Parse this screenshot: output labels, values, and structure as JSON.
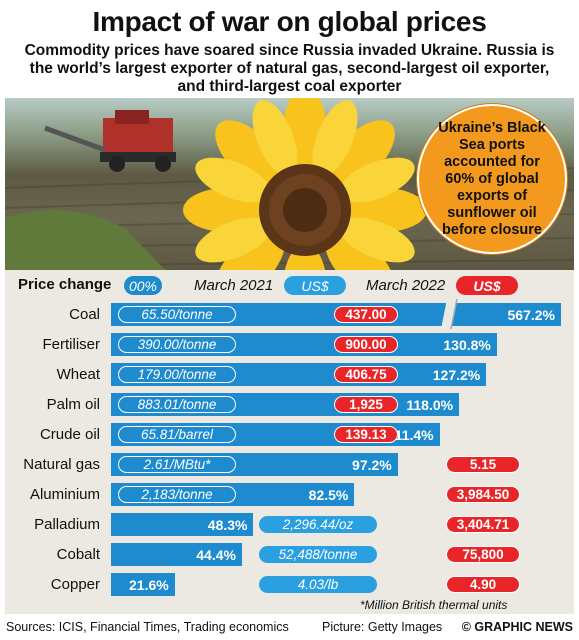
{
  "title": "Impact of war on global prices",
  "subtitle": "Commodity prices have soared since Russia invaded Ukraine. Russia is the world’s largest exporter of natural gas, second-largest oil exporter, and third-largest coal exporter",
  "callout": "Ukraine’s Black Sea ports accounted for 60% of global exports of sunflower oil before closure",
  "header": {
    "price_change_label": "Price change",
    "pct_pill": "00%",
    "march2021_label": "March 2021",
    "march2021_pill": "US$",
    "march2022_label": "March 2022",
    "march2022_pill": "US$"
  },
  "colors": {
    "bar": "#1d8bce",
    "red": "#e8262a",
    "panel": "#ebe9e2",
    "orange": "#f39a1e"
  },
  "chart_data": {
    "type": "bar",
    "orientation": "horizontal",
    "title": "Impact of war on global prices",
    "value_label": "Price change",
    "categories": [
      "Coal",
      "Fertiliser",
      "Wheat",
      "Palm oil",
      "Crude oil",
      "Natural gas",
      "Aluminium",
      "Palladium",
      "Cobalt",
      "Copper"
    ],
    "values": [
      567.2,
      130.8,
      127.2,
      118.0,
      111.4,
      97.2,
      82.5,
      48.3,
      44.4,
      21.6
    ],
    "value_labels": [
      "567.2%",
      "130.8%",
      "127.2%",
      "118.0%",
      "111.4%",
      "97.2%",
      "82.5%",
      "48.3%",
      "44.4%",
      "21.6%"
    ],
    "axis_break": "Coal bar truncated",
    "march_2021": [
      "65.50/tonne",
      "390.00/tonne",
      "179.00/tonne",
      "883.01/tonne",
      "65.81/barrel",
      "2.61/MBtu*",
      "2,183/tonne",
      "2,296.44/oz",
      "52,488/tonne",
      "4.03/lb"
    ],
    "march_2022": [
      "437.00",
      "900.00",
      "406.75",
      "1,925",
      "139.13",
      "5.15",
      "3,984.50",
      "3,404.71",
      "75,800",
      "4.90"
    ]
  },
  "footnote": "*Million British thermal units",
  "footer": {
    "sources": "Sources: ICIS, Financial Times, Trading economics",
    "picture": "Picture: Getty Images",
    "credit": "© GRAPHIC NEWS"
  }
}
